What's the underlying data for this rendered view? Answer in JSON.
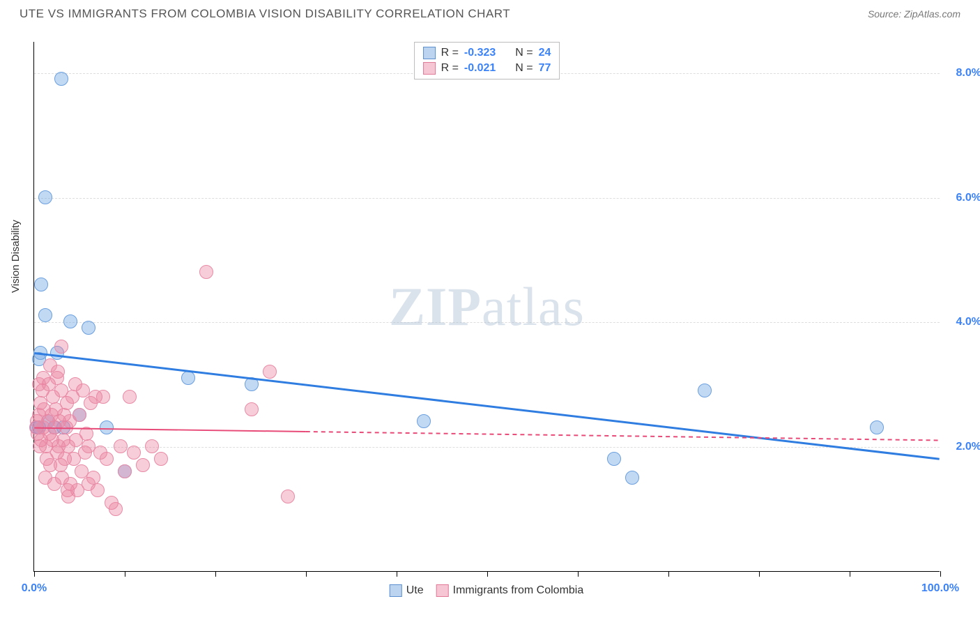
{
  "header": {
    "title": "UTE VS IMMIGRANTS FROM COLOMBIA VISION DISABILITY CORRELATION CHART",
    "source_label": "Source: ",
    "source_name": "ZipAtlas.com"
  },
  "watermark": {
    "part1": "ZIP",
    "part2": "atlas"
  },
  "chart": {
    "type": "scatter",
    "ylabel": "Vision Disability",
    "background_color": "#ffffff",
    "grid_color": "#dddddd",
    "xlim": [
      0,
      100
    ],
    "ylim": [
      0,
      8.5
    ],
    "xticks": [
      {
        "value": 0,
        "label": "0.0%"
      },
      {
        "value": 10
      },
      {
        "value": 20
      },
      {
        "value": 30
      },
      {
        "value": 40
      },
      {
        "value": 50
      },
      {
        "value": 60
      },
      {
        "value": 70
      },
      {
        "value": 80
      },
      {
        "value": 90
      },
      {
        "value": 100,
        "label": "100.0%"
      }
    ],
    "yticks": [
      {
        "value": 2.0,
        "label": "2.0%"
      },
      {
        "value": 4.0,
        "label": "4.0%"
      },
      {
        "value": 6.0,
        "label": "6.0%"
      },
      {
        "value": 8.0,
        "label": "8.0%"
      }
    ],
    "series": [
      {
        "name": "Ute",
        "legend_label": "Ute",
        "R_label": "R =",
        "R": "-0.323",
        "N_label": "N =",
        "N": "24",
        "fill_color": "rgba(120,170,230,0.45)",
        "stroke_color": "#6a9fde",
        "marker_radius": 10,
        "swatch_fill": "#bcd4f0",
        "swatch_border": "#5b8fd0",
        "trend": {
          "color": "#2f7de0",
          "width": 3,
          "dash": "none",
          "x1": 0,
          "y1": 3.5,
          "x2": 100,
          "y2": 1.8,
          "solid_until_x": 100
        },
        "points": [
          {
            "x": 0.5,
            "y": 3.4
          },
          {
            "x": 0.8,
            "y": 4.6
          },
          {
            "x": 3,
            "y": 7.9
          },
          {
            "x": 1.2,
            "y": 6.0
          },
          {
            "x": 1.2,
            "y": 4.1
          },
          {
            "x": 4,
            "y": 4.0
          },
          {
            "x": 6,
            "y": 3.9
          },
          {
            "x": 2.5,
            "y": 3.5
          },
          {
            "x": 2.2,
            "y": 2.3
          },
          {
            "x": 5,
            "y": 2.5
          },
          {
            "x": 8,
            "y": 2.3
          },
          {
            "x": 10,
            "y": 1.6
          },
          {
            "x": 17,
            "y": 3.1
          },
          {
            "x": 24,
            "y": 3.0
          },
          {
            "x": 43,
            "y": 2.4
          },
          {
            "x": 64,
            "y": 1.8
          },
          {
            "x": 66,
            "y": 1.5
          },
          {
            "x": 74,
            "y": 2.9
          },
          {
            "x": 93,
            "y": 2.3
          },
          {
            "x": 0.7,
            "y": 3.5
          },
          {
            "x": 1.5,
            "y": 2.4
          },
          {
            "x": 3.2,
            "y": 2.3
          },
          {
            "x": 0.3,
            "y": 2.3
          },
          {
            "x": 0.5,
            "y": 2.3
          }
        ]
      },
      {
        "name": "Immigrants from Colombia",
        "legend_label": "Immigrants from Colombia",
        "R_label": "R =",
        "R": "-0.021",
        "N_label": "N =",
        "N": "77",
        "fill_color": "rgba(235,130,160,0.40)",
        "stroke_color": "#e88aa6",
        "marker_radius": 10,
        "swatch_fill": "#f6c6d4",
        "swatch_border": "#e07a98",
        "trend": {
          "color": "#e84a78",
          "width": 2,
          "dash": "6,5",
          "x1": 0,
          "y1": 2.3,
          "x2": 100,
          "y2": 2.1,
          "solid_until_x": 30
        },
        "points": [
          {
            "x": 0.2,
            "y": 2.3
          },
          {
            "x": 0.3,
            "y": 2.4
          },
          {
            "x": 0.4,
            "y": 2.2
          },
          {
            "x": 0.5,
            "y": 2.5
          },
          {
            "x": 0.6,
            "y": 2.0
          },
          {
            "x": 0.7,
            "y": 2.7
          },
          {
            "x": 0.8,
            "y": 2.1
          },
          {
            "x": 0.9,
            "y": 2.9
          },
          {
            "x": 1.0,
            "y": 2.3
          },
          {
            "x": 1.1,
            "y": 2.6
          },
          {
            "x": 1.2,
            "y": 1.5
          },
          {
            "x": 1.3,
            "y": 2.0
          },
          {
            "x": 1.4,
            "y": 1.8
          },
          {
            "x": 1.5,
            "y": 2.4
          },
          {
            "x": 1.6,
            "y": 3.0
          },
          {
            "x": 1.7,
            "y": 2.2
          },
          {
            "x": 1.8,
            "y": 1.7
          },
          {
            "x": 1.9,
            "y": 2.5
          },
          {
            "x": 2.0,
            "y": 2.1
          },
          {
            "x": 2.1,
            "y": 2.8
          },
          {
            "x": 2.2,
            "y": 1.4
          },
          {
            "x": 2.3,
            "y": 2.3
          },
          {
            "x": 2.4,
            "y": 2.6
          },
          {
            "x": 2.5,
            "y": 1.9
          },
          {
            "x": 2.6,
            "y": 3.2
          },
          {
            "x": 2.7,
            "y": 2.0
          },
          {
            "x": 2.8,
            "y": 2.4
          },
          {
            "x": 2.9,
            "y": 1.7
          },
          {
            "x": 3.0,
            "y": 3.6
          },
          {
            "x": 3.1,
            "y": 1.5
          },
          {
            "x": 3.2,
            "y": 2.1
          },
          {
            "x": 3.3,
            "y": 2.5
          },
          {
            "x": 3.4,
            "y": 1.8
          },
          {
            "x": 3.5,
            "y": 2.3
          },
          {
            "x": 3.6,
            "y": 2.7
          },
          {
            "x": 3.7,
            "y": 1.3
          },
          {
            "x": 3.8,
            "y": 2.0
          },
          {
            "x": 3.9,
            "y": 2.4
          },
          {
            "x": 4.0,
            "y": 1.4
          },
          {
            "x": 4.2,
            "y": 2.8
          },
          {
            "x": 4.4,
            "y": 1.8
          },
          {
            "x": 4.6,
            "y": 2.1
          },
          {
            "x": 4.8,
            "y": 1.3
          },
          {
            "x": 5.0,
            "y": 2.5
          },
          {
            "x": 5.2,
            "y": 1.6
          },
          {
            "x": 5.4,
            "y": 2.9
          },
          {
            "x": 5.6,
            "y": 1.9
          },
          {
            "x": 5.8,
            "y": 2.2
          },
          {
            "x": 6.0,
            "y": 1.4
          },
          {
            "x": 6.2,
            "y": 2.7
          },
          {
            "x": 6.5,
            "y": 1.5
          },
          {
            "x": 6.8,
            "y": 2.8
          },
          {
            "x": 7.0,
            "y": 1.3
          },
          {
            "x": 7.3,
            "y": 1.9
          },
          {
            "x": 7.6,
            "y": 2.8
          },
          {
            "x": 8.0,
            "y": 1.8
          },
          {
            "x": 8.5,
            "y": 1.1
          },
          {
            "x": 9.0,
            "y": 1.0
          },
          {
            "x": 9.5,
            "y": 2.0
          },
          {
            "x": 10.0,
            "y": 1.6
          },
          {
            "x": 10.5,
            "y": 2.8
          },
          {
            "x": 11.0,
            "y": 1.9
          },
          {
            "x": 12.0,
            "y": 1.7
          },
          {
            "x": 13.0,
            "y": 2.0
          },
          {
            "x": 14.0,
            "y": 1.8
          },
          {
            "x": 19.0,
            "y": 4.8
          },
          {
            "x": 24.0,
            "y": 2.6
          },
          {
            "x": 26.0,
            "y": 3.2
          },
          {
            "x": 28.0,
            "y": 1.2
          },
          {
            "x": 2.5,
            "y": 3.1
          },
          {
            "x": 3.0,
            "y": 2.9
          },
          {
            "x": 4.5,
            "y": 3.0
          },
          {
            "x": 1.0,
            "y": 3.1
          },
          {
            "x": 0.5,
            "y": 3.0
          },
          {
            "x": 1.8,
            "y": 3.3
          },
          {
            "x": 6.0,
            "y": 2.0
          },
          {
            "x": 3.8,
            "y": 1.2
          }
        ]
      }
    ]
  }
}
